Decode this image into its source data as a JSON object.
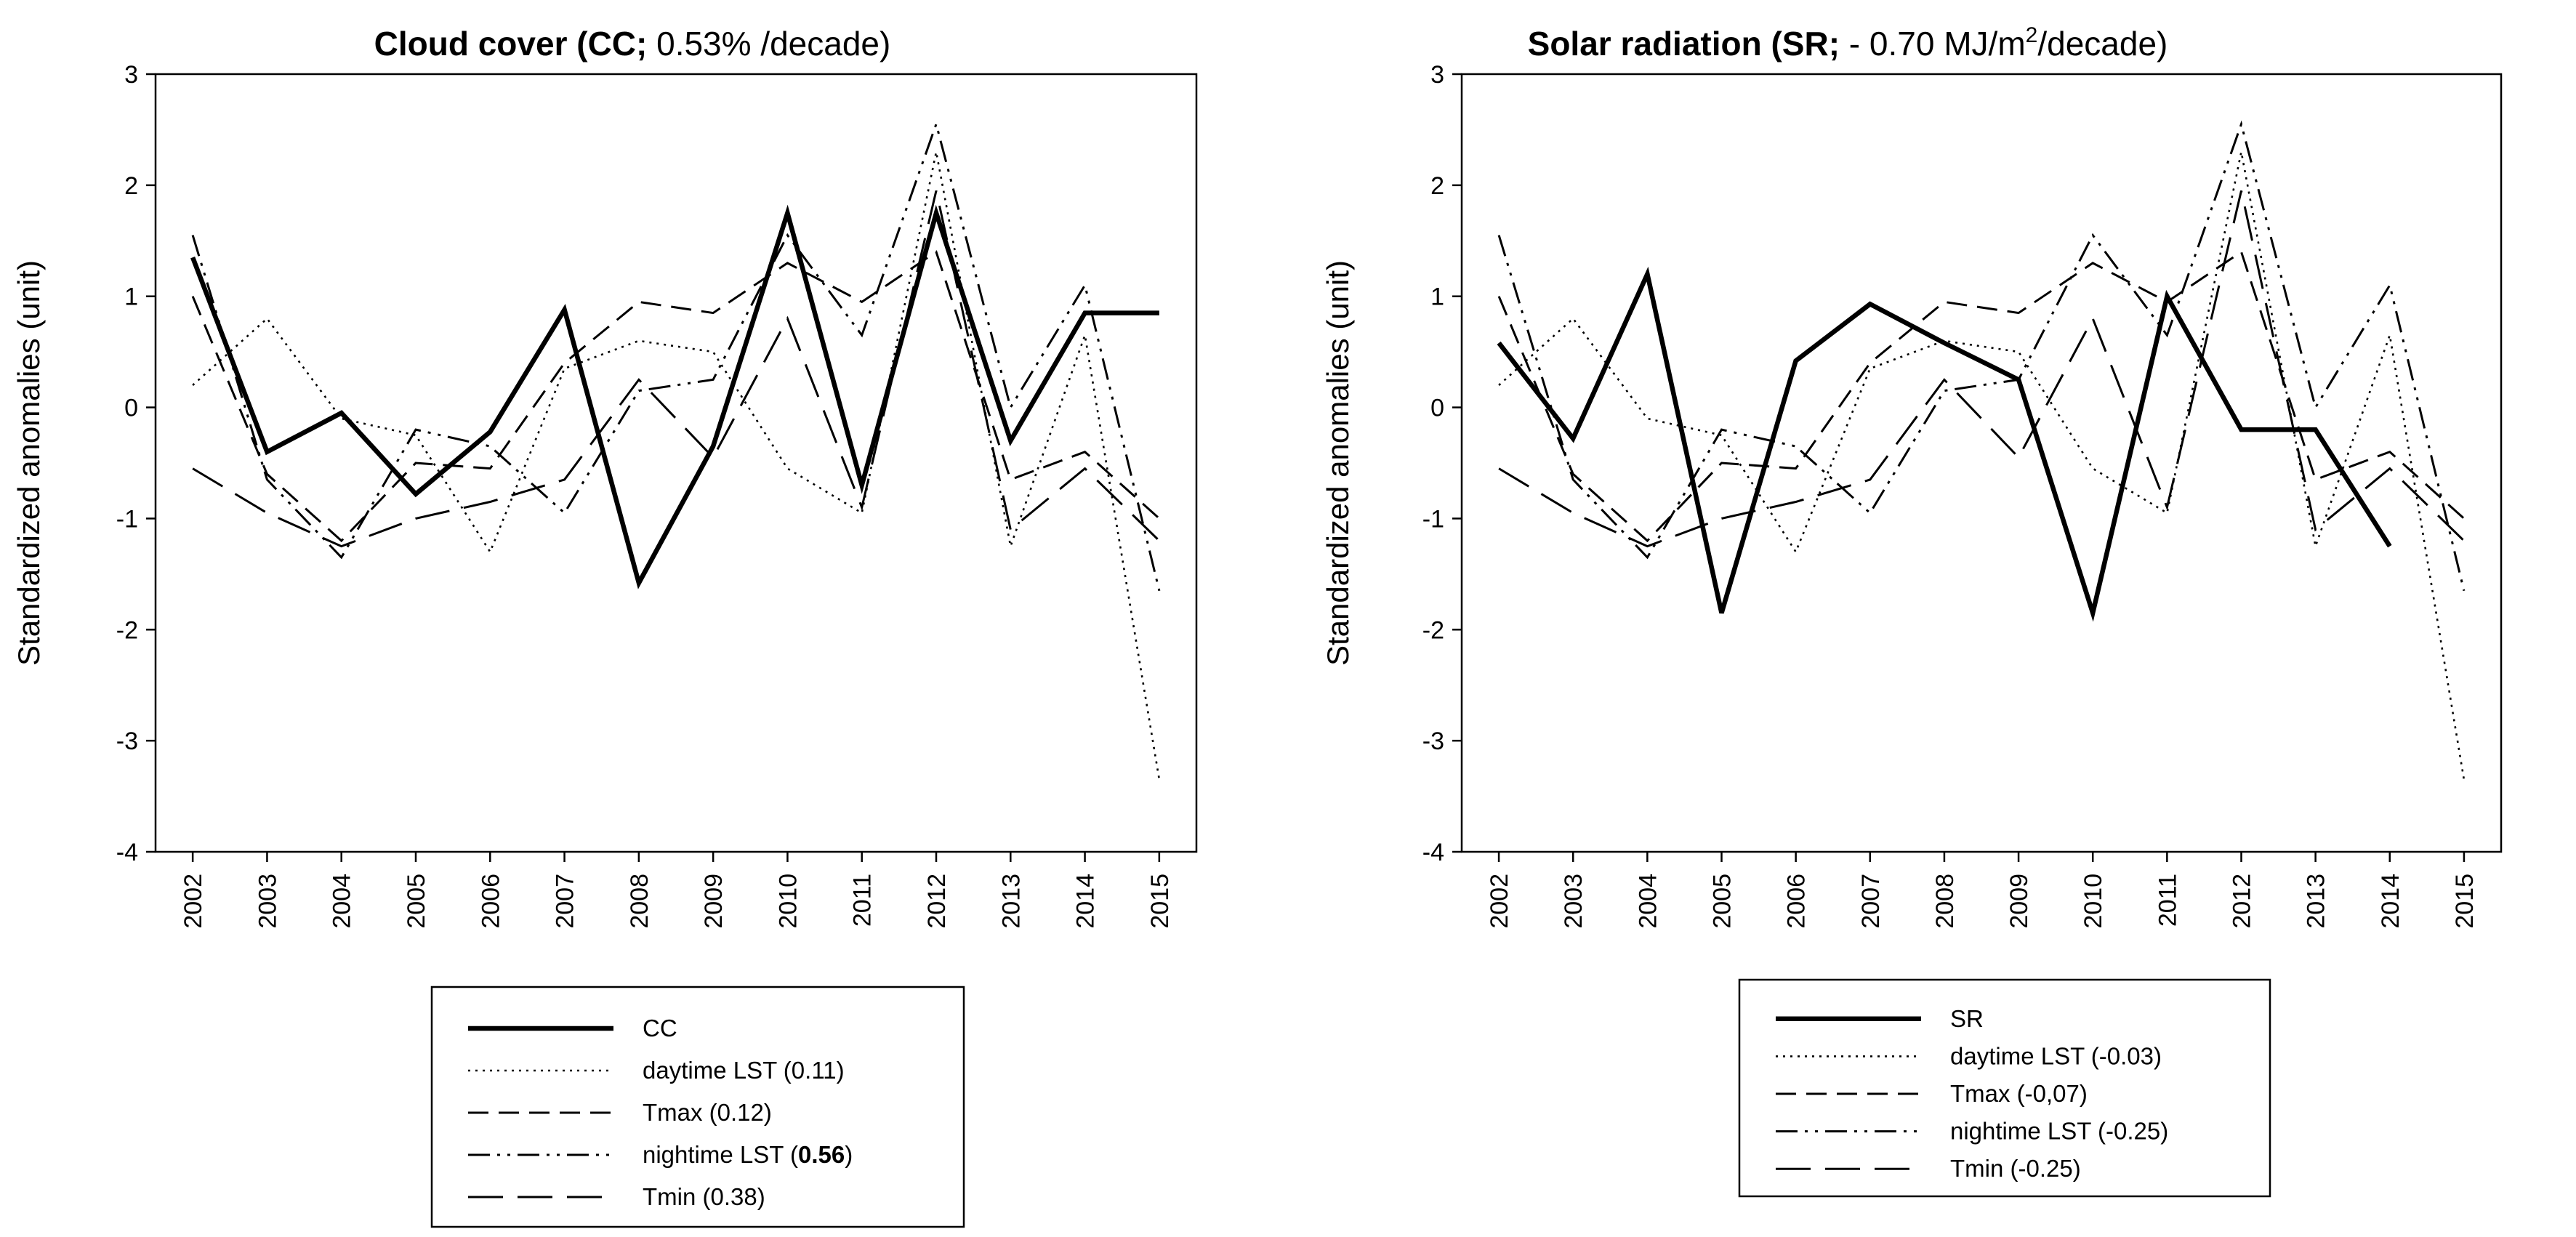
{
  "chart_data": [
    {
      "type": "line",
      "title_bold": "Cloud cover (CC;",
      "title_rest": " 0.53% /decade)",
      "ylabel": "Standardized anomalies (unit)",
      "xlabel": "",
      "ylim": [
        -4,
        3
      ],
      "yticks": [
        "3",
        "2",
        "1",
        "0",
        "-1",
        "-2",
        "-3",
        "-4"
      ],
      "categories": [
        "2002",
        "2003",
        "2004",
        "2005",
        "2006",
        "2007",
        "2008",
        "2009",
        "2010",
        "2011",
        "2012",
        "2013",
        "2014",
        "2015"
      ],
      "legend_position": "bottom",
      "series": [
        {
          "name": "CC",
          "legend_plain": "CC",
          "style": "solid-bold",
          "values": [
            1.35,
            -0.4,
            -0.05,
            -0.78,
            -0.22,
            0.88,
            -1.58,
            -0.35,
            1.75,
            -0.7,
            1.75,
            -0.3,
            0.85,
            0.85
          ]
        },
        {
          "name": "daytime LST (0.11)",
          "legend_plain": "daytime LST (0.11)",
          "style": "dotted",
          "values": [
            0.2,
            0.8,
            -0.1,
            -0.25,
            -1.3,
            0.35,
            0.6,
            0.5,
            -0.55,
            -0.95,
            2.3,
            -1.25,
            0.65,
            -3.35
          ]
        },
        {
          "name": "Tmax (0.12)",
          "legend_plain": "Tmax (0.12)",
          "style": "dashed",
          "values": [
            1.0,
            -0.6,
            -1.2,
            -0.5,
            -0.55,
            0.4,
            0.95,
            0.85,
            1.3,
            0.95,
            1.4,
            -0.65,
            -0.4,
            -1.0
          ]
        },
        {
          "name": "nightime LST (0.56)",
          "legend_plain": "nightime LST (",
          "legend_bold": "0.56",
          "legend_after": ")",
          "style": "dashdotdot",
          "values": [
            1.55,
            -0.65,
            -1.35,
            -0.2,
            -0.35,
            -0.95,
            0.15,
            0.25,
            1.55,
            0.65,
            2.55,
            0.0,
            1.1,
            -1.65
          ]
        },
        {
          "name": "Tmin (0.38)",
          "legend_plain": "Tmin (0.38)",
          "style": "longdash",
          "values": [
            -0.55,
            -0.95,
            -1.25,
            -1.0,
            -0.85,
            -0.65,
            0.25,
            -0.45,
            0.8,
            -0.9,
            1.95,
            -1.1,
            -0.55,
            -1.2
          ]
        }
      ]
    },
    {
      "type": "line",
      "title_bold": "Solar radiation (SR;",
      "title_rest": " - 0.70 MJ/m",
      "title_sup": "2",
      "title_end": "/decade)",
      "ylabel": "Standardized anomalies (unit)",
      "xlabel": "",
      "ylim": [
        -4,
        3
      ],
      "yticks": [
        "3",
        "2",
        "1",
        "0",
        "-1",
        "-2",
        "-3",
        "-4"
      ],
      "categories": [
        "2002",
        "2003",
        "2004",
        "2005",
        "2006",
        "2007",
        "2008",
        "2009",
        "2010",
        "2011",
        "2012",
        "2013",
        "2014",
        "2015"
      ],
      "legend_position": "bottom",
      "series": [
        {
          "name": "SR",
          "legend_plain": "SR",
          "style": "solid-bold",
          "values": [
            0.58,
            -0.28,
            1.2,
            -1.85,
            0.42,
            0.93,
            0.58,
            0.25,
            -1.85,
            1.0,
            -0.2,
            -0.2,
            -1.25,
            null
          ]
        },
        {
          "name": "daytime LST (-0.03)",
          "legend_plain": "daytime LST (-0.03)",
          "style": "dotted",
          "values": [
            0.2,
            0.8,
            -0.1,
            -0.25,
            -1.3,
            0.35,
            0.6,
            0.5,
            -0.55,
            -0.95,
            2.3,
            -1.25,
            0.65,
            -3.35
          ]
        },
        {
          "name": "Tmax (-0,07)",
          "legend_plain": "Tmax (-0,07)",
          "style": "dashed",
          "values": [
            1.0,
            -0.6,
            -1.2,
            -0.5,
            -0.55,
            0.4,
            0.95,
            0.85,
            1.3,
            0.95,
            1.4,
            -0.65,
            -0.4,
            -1.0
          ]
        },
        {
          "name": "nightime LST (-0.25)",
          "legend_plain": "nightime LST (-0.25)",
          "style": "dashdotdot",
          "values": [
            1.55,
            -0.65,
            -1.35,
            -0.2,
            -0.35,
            -0.95,
            0.15,
            0.25,
            1.55,
            0.65,
            2.55,
            0.0,
            1.1,
            -1.65
          ]
        },
        {
          "name": "Tmin (-0.25)",
          "legend_plain": "Tmin (-0.25)",
          "style": "longdash",
          "values": [
            -0.55,
            -0.95,
            -1.25,
            -1.0,
            -0.85,
            -0.65,
            0.25,
            -0.45,
            0.8,
            -0.9,
            1.95,
            -1.1,
            -0.55,
            -1.2
          ]
        }
      ]
    }
  ]
}
